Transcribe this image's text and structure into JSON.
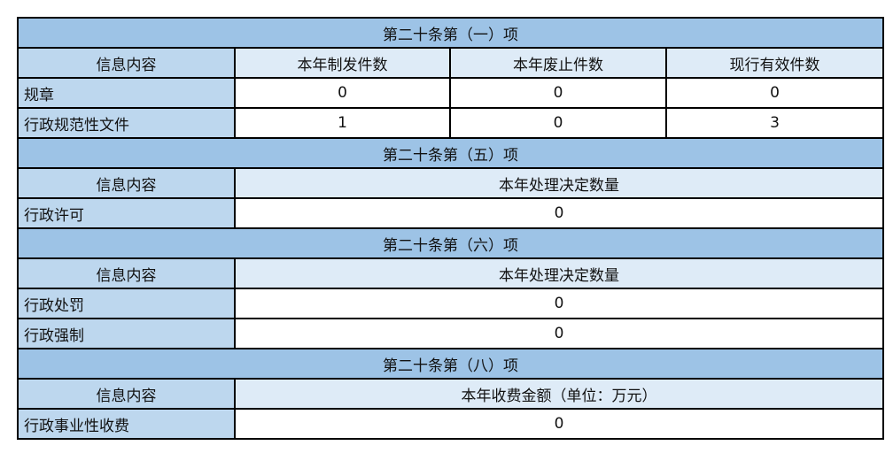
{
  "colors": {
    "section": "#9dc3e6",
    "label": "#bdd7ee",
    "header": "#deebf7"
  },
  "s1": {
    "title": "第二十条第（一）项",
    "headers": [
      "信息内容",
      "本年制发件数",
      "本年废止件数",
      "现行有效件数"
    ],
    "rows": [
      {
        "label": "规章",
        "values": [
          "0",
          "0",
          "0"
        ]
      },
      {
        "label": "行政规范性文件",
        "values": [
          "1",
          "0",
          "3"
        ]
      }
    ]
  },
  "s5": {
    "title": "第二十条第（五）项",
    "headers": [
      "信息内容",
      "本年处理决定数量"
    ],
    "rows": [
      {
        "label": "行政许可",
        "value": "0"
      }
    ]
  },
  "s6": {
    "title": "第二十条第（六）项",
    "headers": [
      "信息内容",
      "本年处理决定数量"
    ],
    "rows": [
      {
        "label": "行政处罚",
        "value": "0"
      },
      {
        "label": "行政强制",
        "value": "0"
      }
    ]
  },
  "s8": {
    "title": "第二十条第（八）项",
    "headers": [
      "信息内容",
      "本年收费金额（单位：万元）"
    ],
    "rows": [
      {
        "label": "行政事业性收费",
        "value": "0"
      }
    ]
  }
}
